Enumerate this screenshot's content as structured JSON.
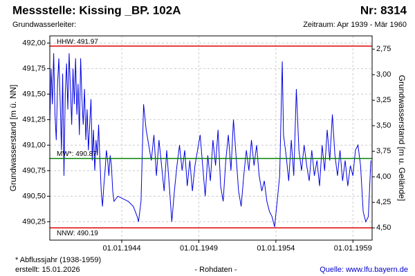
{
  "chart_data": {
    "type": "line",
    "title": "Messstelle: Kissing _BP. 102A",
    "number": "Nr: 8314",
    "subtitle_left": "Grundwasserleiter:",
    "subtitle_right": "Zeitraum: Apr 1939 - Mär 1960",
    "y_label": "Grundwasserstand [m ü. NN]",
    "y2_label": "Grundwasserstand [m u. Gelände]",
    "footnote": "* Abflussjahr (1938-1959)",
    "created": "erstellt:  15.01.2026",
    "raw_note": "- Rohdaten -",
    "source": "Quelle: www.lfu.bayern.de",
    "grid": true,
    "xlim": [
      "1939-05-01",
      "1960-03-31"
    ],
    "xticks": [
      {
        "value": "1944-01-01",
        "label": "01.01.1944"
      },
      {
        "value": "1949-01-01",
        "label": "01.01.1949"
      },
      {
        "value": "1954-01-01",
        "label": "01.01.1954"
      },
      {
        "value": "1959-01-01",
        "label": "01.01.1959"
      }
    ],
    "ylim": [
      490.07,
      492.07
    ],
    "yticks": [
      {
        "value": 490.25,
        "label": "490,25"
      },
      {
        "value": 490.5,
        "label": "490,50"
      },
      {
        "value": 490.75,
        "label": "490,75"
      },
      {
        "value": 491,
        "label": "491,00"
      },
      {
        "value": 491.25,
        "label": "491,25"
      },
      {
        "value": 491.5,
        "label": "491,50"
      },
      {
        "value": 491.75,
        "label": "491,75"
      },
      {
        "value": 492,
        "label": "492,00"
      }
    ],
    "y2lim": [
      4.62,
      2.62
    ],
    "y2ticks": [
      {
        "value": 2.75,
        "label": "2,75"
      },
      {
        "value": 3,
        "label": "3,00"
      },
      {
        "value": 3.25,
        "label": "3,25"
      },
      {
        "value": 3.5,
        "label": "3,50"
      },
      {
        "value": 3.75,
        "label": "3,75"
      },
      {
        "value": 4,
        "label": "4,00"
      },
      {
        "value": 4.25,
        "label": "4,25"
      },
      {
        "value": 4.5,
        "label": "4,50"
      }
    ],
    "reference_lines": [
      {
        "label": "HHW: 491.97",
        "value": 491.97,
        "color": "#e00000",
        "label_side": "above"
      },
      {
        "label": "MW*: 490.87",
        "value": 490.87,
        "color": "#008000",
        "label_side": "above"
      },
      {
        "label": "NNW: 490.19",
        "value": 490.19,
        "color": "#e00000",
        "label_side": "below"
      }
    ],
    "x": [
      "1939-05",
      "1939-06",
      "1939-07",
      "1939-08",
      "1939-09",
      "1939-10",
      "1939-11",
      "1939-12",
      "1940-01",
      "1940-02",
      "1940-03",
      "1940-04",
      "1940-05",
      "1940-06",
      "1940-07",
      "1940-08",
      "1940-09",
      "1940-10",
      "1940-11",
      "1940-12",
      "1941-01",
      "1941-02",
      "1941-03",
      "1941-04",
      "1941-05",
      "1941-06",
      "1941-07",
      "1941-08",
      "1941-09",
      "1941-10",
      "1941-11",
      "1941-12",
      "1942-01",
      "1942-02",
      "1942-03",
      "1942-04",
      "1942-05",
      "1942-06",
      "1942-07",
      "1942-08",
      "1942-09",
      "1942-10",
      "1942-11",
      "1942-12",
      "1943-01",
      "1943-02",
      "1943-03",
      "1943-04",
      "1943-05",
      "1943-06",
      "1943-07",
      "1943-10",
      "1944-06",
      "1944-10",
      "1945-01",
      "1945-02",
      "1945-04",
      "1945-06",
      "1945-08",
      "1945-10",
      "1945-12",
      "1946-02",
      "1946-04",
      "1946-06",
      "1946-08",
      "1946-10",
      "1946-12",
      "1947-02",
      "1947-04",
      "1947-06",
      "1947-08",
      "1947-10",
      "1947-12",
      "1948-02",
      "1948-04",
      "1948-06",
      "1948-08",
      "1948-10",
      "1948-12",
      "1949-02",
      "1949-04",
      "1949-06",
      "1949-08",
      "1949-10",
      "1949-12",
      "1950-02",
      "1950-04",
      "1950-06",
      "1950-08",
      "1950-10",
      "1950-12",
      "1951-02",
      "1951-04",
      "1951-06",
      "1951-08",
      "1951-10",
      "1951-12",
      "1952-02",
      "1952-04",
      "1952-06",
      "1952-08",
      "1952-10",
      "1952-12",
      "1953-02",
      "1953-04",
      "1953-06",
      "1953-08",
      "1953-10",
      "1953-12",
      "1954-02",
      "1954-04",
      "1954-06",
      "1954-07",
      "1954-09",
      "1954-11",
      "1955-01",
      "1955-03",
      "1955-05",
      "1955-07",
      "1955-09",
      "1955-11",
      "1956-01",
      "1956-03",
      "1956-05",
      "1956-07",
      "1956-09",
      "1956-11",
      "1957-01",
      "1957-03",
      "1957-05",
      "1957-07",
      "1957-09",
      "1957-11",
      "1958-01",
      "1958-03",
      "1958-05",
      "1958-07",
      "1958-09",
      "1958-11",
      "1959-01",
      "1959-03",
      "1959-05",
      "1959-07",
      "1959-09",
      "1959-11",
      "1960-01",
      "1960-03"
    ],
    "series": [
      {
        "name": "Grundwasserstand",
        "color": "#0000e0",
        "values": [
          491.2,
          491.75,
          491.4,
          491.9,
          491.3,
          491.05,
          491.6,
          491.85,
          491.45,
          490.95,
          491.7,
          490.7,
          491.5,
          491.8,
          491.35,
          491.9,
          491.55,
          491.2,
          491.75,
          491.4,
          491.85,
          491.3,
          491.6,
          491.1,
          491.85,
          491.45,
          491.2,
          491.55,
          491.05,
          491.35,
          490.95,
          491.2,
          491.45,
          490.85,
          491.15,
          490.75,
          491.05,
          490.9,
          491.2,
          490.85,
          490.55,
          490.4,
          490.6,
          490.75,
          490.95,
          490.85,
          490.7,
          490.9,
          490.8,
          490.55,
          490.45,
          490.5,
          490.45,
          490.4,
          490.3,
          490.25,
          490.45,
          491.4,
          491.15,
          491.0,
          490.85,
          491.1,
          490.7,
          491.05,
          490.8,
          490.55,
          490.95,
          490.6,
          490.25,
          490.55,
          490.8,
          491.0,
          490.75,
          490.95,
          490.6,
          490.85,
          490.55,
          490.8,
          490.95,
          491.1,
          490.8,
          490.5,
          490.9,
          490.65,
          491.05,
          490.8,
          491.15,
          490.6,
          490.45,
          490.85,
          491.1,
          490.75,
          491.25,
          490.9,
          490.55,
          490.4,
          490.7,
          490.95,
          490.75,
          491.05,
          490.8,
          491.0,
          490.7,
          490.55,
          490.65,
          490.45,
          490.35,
          490.3,
          490.2,
          490.45,
          490.7,
          491.82,
          491.1,
          490.9,
          490.65,
          491.05,
          490.7,
          491.55,
          490.95,
          490.75,
          491.0,
          490.8,
          490.65,
          490.95,
          490.7,
          490.85,
          490.6,
          491.0,
          490.75,
          491.15,
          490.85,
          491.3,
          490.9,
          490.7,
          490.95,
          490.65,
          490.85,
          490.6,
          490.8,
          490.7,
          490.95,
          491.0,
          490.8,
          490.35,
          490.25,
          490.3,
          490.85
        ]
      }
    ]
  }
}
